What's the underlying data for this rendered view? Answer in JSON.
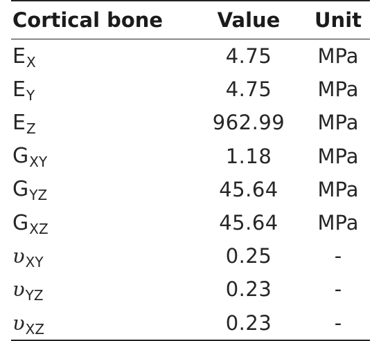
{
  "table": {
    "headers": [
      "Cortical bone",
      "Value",
      "Unit"
    ],
    "rows": [
      {
        "symbol": "E",
        "subscript": "X",
        "value": "4.75",
        "unit": "MPa"
      },
      {
        "symbol": "E",
        "subscript": "Y",
        "value": "4.75",
        "unit": "MPa"
      },
      {
        "symbol": "E",
        "subscript": "Z",
        "value": "962.99",
        "unit": "MPa"
      },
      {
        "symbol": "G",
        "subscript": "XY",
        "value": "1.18",
        "unit": "MPa"
      },
      {
        "symbol": "G",
        "subscript": "YZ",
        "value": "45.64",
        "unit": "MPa"
      },
      {
        "symbol": "G",
        "subscript": "XZ",
        "value": "45.64",
        "unit": "MPa"
      },
      {
        "symbol": "υ",
        "subscript": "XY",
        "value": "0.25",
        "unit": "-"
      },
      {
        "symbol": "υ",
        "subscript": "YZ",
        "value": "0.23",
        "unit": "-"
      },
      {
        "symbol": "υ",
        "subscript": "XZ",
        "value": "0.23",
        "unit": "-"
      }
    ]
  }
}
